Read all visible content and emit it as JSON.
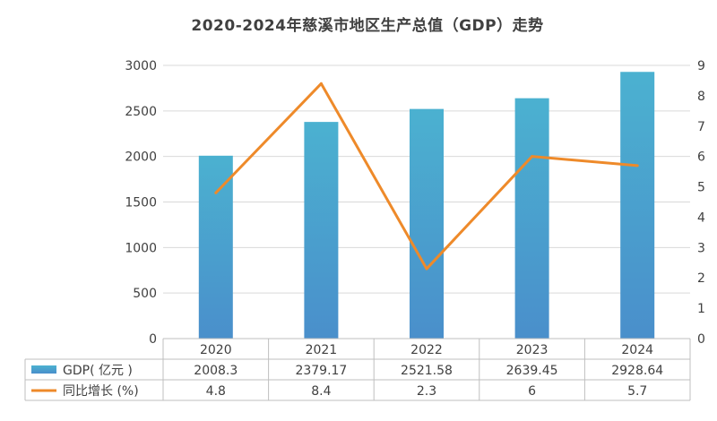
{
  "chart_data": {
    "type": "bar",
    "title": "2020-2024年慈溪市地区生产总值（GDP）走势",
    "categories": [
      "2020",
      "2021",
      "2022",
      "2023",
      "2024"
    ],
    "series": [
      {
        "name": "GDP( 亿元 )",
        "type": "bar",
        "axis": "left",
        "values": [
          2008.3,
          2379.17,
          2521.58,
          2639.45,
          2928.64
        ],
        "value_labels": [
          "2008.3",
          "2379.17",
          "2521.58",
          "2639.45",
          "2928.64"
        ],
        "color": "#4bb1d0",
        "color_bottom": "#4a8fcb"
      },
      {
        "name": "同比增长 (%)",
        "type": "line",
        "axis": "right",
        "values": [
          4.8,
          8.4,
          2.3,
          6,
          5.7
        ],
        "value_labels": [
          "4.8",
          "8.4",
          "2.3",
          "6",
          "5.7"
        ],
        "color": "#ee8a2a"
      }
    ],
    "y_left": {
      "min": 0,
      "max": 3000,
      "ticks": [
        "0",
        "500",
        "1000",
        "1500",
        "2000",
        "2500",
        "3000"
      ]
    },
    "y_right": {
      "min": 0,
      "max": 9,
      "ticks": [
        "0",
        "1",
        "2",
        "3",
        "4",
        "5",
        "6",
        "7",
        "8",
        "9"
      ]
    },
    "grid": true,
    "legend": "data-table"
  }
}
